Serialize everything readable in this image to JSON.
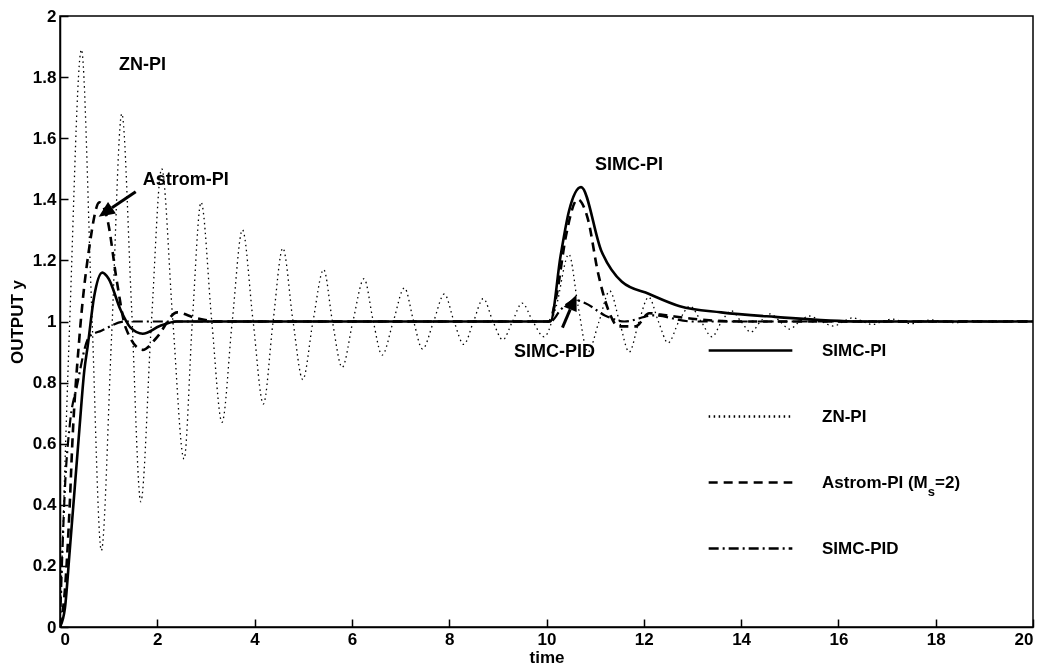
{
  "chart_data": {
    "type": "line",
    "xlabel": "time",
    "ylabel": "OUTPUT y",
    "xlim": [
      0,
      20
    ],
    "xticks": [
      0,
      2,
      4,
      6,
      8,
      10,
      12,
      14,
      16,
      18,
      20
    ],
    "ylim": [
      0,
      2
    ],
    "yticks": [
      0,
      0.2,
      0.4,
      0.6,
      0.8,
      1,
      1.2,
      1.4,
      1.6,
      1.8,
      2
    ],
    "grid": false,
    "legend": "bottom right",
    "annotations": [
      {
        "text": "ZN-PI",
        "x": 0.44,
        "y": 1.89
      },
      {
        "text": "Astrom-PI",
        "x": 0.96,
        "y": 1.32
      },
      {
        "text": "SIMC-PI",
        "x": 10.71,
        "y": 1.44
      },
      {
        "text": "SIMC-PID",
        "x": 10.78,
        "y": 1.065
      }
    ],
    "series": [
      {
        "name": "SIMC-PI",
        "color": "#000000",
        "line_style": "solid",
        "x": [
          0,
          0.1,
          0.2,
          0.3,
          0.4,
          0.5,
          0.57,
          0.7,
          0.87,
          1.0,
          1.24,
          1.45,
          1.7,
          2.05,
          2.4,
          10.08,
          10.29,
          10.46,
          10.71,
          11.13,
          11.55,
          12.11,
          12.74,
          13.59,
          14.7,
          16.45,
          20
        ],
        "values": [
          0,
          0.06,
          0.25,
          0.45,
          0.65,
          0.84,
          0.92,
          1.08,
          1.16,
          1.14,
          1.04,
          0.98,
          0.96,
          0.985,
          1.0,
          1.0,
          1.215,
          1.36,
          1.44,
          1.23,
          1.13,
          1.09,
          1.05,
          1.03,
          1.015,
          1.0,
          1.0
        ]
      },
      {
        "name": "ZN-PI",
        "color": "#000000",
        "line_style": "dotted",
        "x": [
          0,
          0.2,
          0.44,
          0.65,
          0.85,
          1.06,
          1.27,
          1.47,
          1.66,
          1.88,
          2.09,
          2.32,
          2.55,
          2.72,
          2.9,
          3.12,
          3.33,
          3.54,
          3.75,
          3.97,
          4.18,
          4.38,
          4.58,
          4.79,
          4.99,
          5.2,
          5.42,
          5.6,
          5.8,
          6.02,
          6.25,
          6.44,
          6.62,
          6.85,
          7.08,
          7.27,
          7.45,
          7.68,
          7.9,
          8.1,
          8.3,
          8.5,
          8.7,
          8.9,
          9.1,
          9.3,
          9.5,
          9.72,
          9.95,
          10.2,
          10.46,
          10.65,
          10.85,
          11.08,
          11.3,
          11.5,
          11.7,
          11.9,
          12.1,
          12.3,
          12.5,
          12.72,
          12.95,
          13.18,
          13.4,
          13.6,
          13.8,
          14.0,
          14.2,
          14.4,
          14.6,
          14.8,
          15.0,
          15.2,
          15.4,
          15.65,
          15.9,
          16.1,
          16.3,
          16.5,
          16.7,
          16.9,
          17.1,
          17.3,
          17.5,
          17.7,
          17.9,
          18.15,
          18.4,
          18.6,
          18.8,
          19.0,
          19.2,
          19.4,
          19.6,
          20
        ],
        "values": [
          0,
          1.0,
          1.89,
          1.05,
          0.25,
          0.95,
          1.68,
          1.05,
          0.41,
          1.0,
          1.5,
          1.0,
          0.55,
          1.0,
          1.39,
          1.0,
          0.67,
          1.0,
          1.3,
          1.0,
          0.73,
          1.0,
          1.24,
          1.0,
          0.81,
          1.0,
          1.17,
          1.0,
          0.85,
          1.0,
          1.14,
          1.0,
          0.89,
          1.0,
          1.11,
          1.0,
          0.91,
          1.0,
          1.09,
          1.0,
          0.925,
          1.0,
          1.075,
          1.0,
          0.94,
          1.0,
          1.06,
          1.0,
          0.95,
          1.05,
          1.22,
          1.05,
          0.9,
          1.0,
          1.1,
          1.0,
          0.9,
          1.0,
          1.08,
          1.0,
          0.93,
          1.0,
          1.05,
          1.0,
          0.95,
          1.0,
          1.035,
          1.0,
          0.965,
          1.0,
          1.025,
          1.0,
          0.975,
          1.0,
          1.018,
          1.0,
          0.985,
          1.0,
          1.012,
          1.0,
          0.99,
          1.0,
          1.008,
          1.0,
          0.993,
          1.0,
          1.005,
          1.0,
          0.996,
          1.0,
          1.003,
          1.0,
          0.998,
          1.0,
          1.002,
          1.0
        ]
      },
      {
        "name": "Astrom-PI (M$_{s}$=2)",
        "color": "#000000",
        "line_style": "dashed",
        "x": [
          0,
          0.1,
          0.2,
          0.25,
          0.4,
          0.6,
          0.81,
          0.98,
          1.17,
          1.35,
          1.7,
          1.98,
          2.41,
          2.76,
          3.26,
          10.05,
          10.2,
          10.4,
          10.64,
          10.85,
          11.06,
          11.27,
          11.48,
          11.83,
          12.11,
          12.46,
          12.95,
          14,
          20
        ],
        "values": [
          0,
          0.12,
          0.4,
          0.59,
          0.95,
          1.24,
          1.39,
          1.33,
          1.13,
          0.98,
          0.907,
          0.946,
          1.03,
          1.013,
          1.0,
          1.0,
          1.08,
          1.28,
          1.4,
          1.336,
          1.159,
          1.038,
          0.984,
          0.984,
          1.027,
          1.02,
          1.01,
          1.0,
          1.0
        ]
      },
      {
        "name": "SIMC-PID",
        "color": "#000000",
        "line_style": "dashdot",
        "x": [
          0,
          0.05,
          0.1,
          0.2,
          0.35,
          0.6,
          0.85,
          1.35,
          10.08,
          10.3,
          10.6,
          10.8,
          11.2,
          11.6,
          12.2,
          13,
          20
        ],
        "values": [
          0,
          0.25,
          0.45,
          0.66,
          0.79,
          0.95,
          0.97,
          1.0,
          1.0,
          1.04,
          1.07,
          1.06,
          1.02,
          1.0,
          1.02,
          1.0,
          1.0
        ]
      }
    ]
  }
}
